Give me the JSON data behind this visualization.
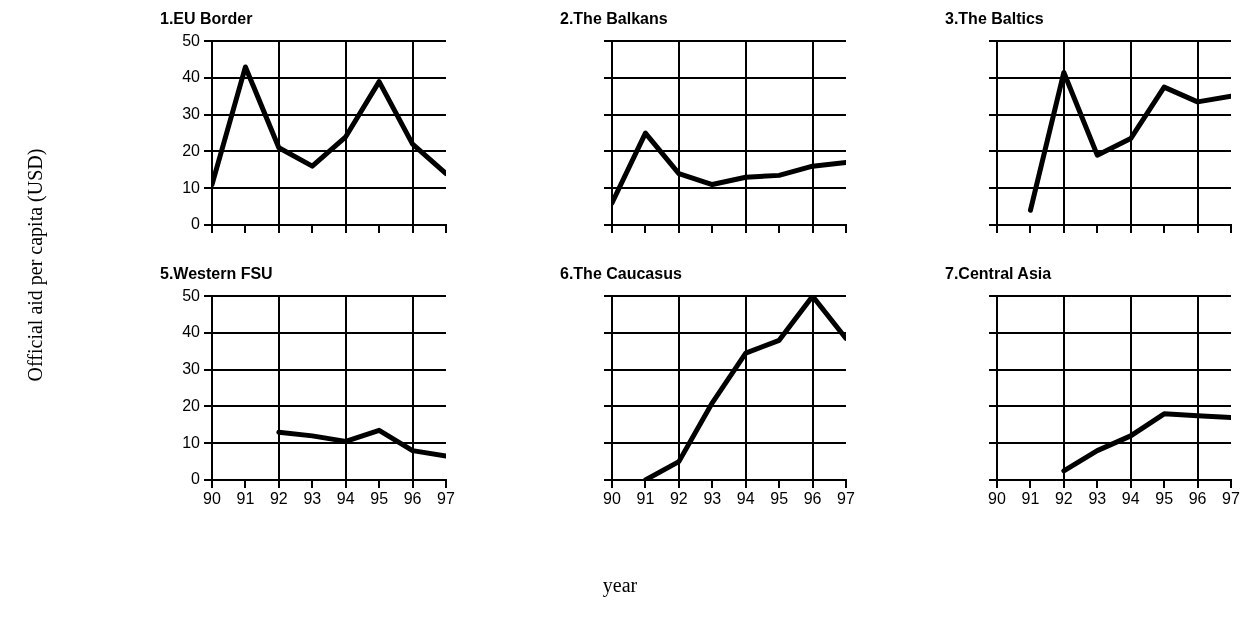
{
  "chart_data": [
    {
      "type": "line",
      "title": "1.EU Border",
      "ylabel": "Official aid per capita (USD)",
      "x": [
        90,
        91,
        92,
        93,
        94,
        95,
        96,
        97
      ],
      "xlim": [
        90,
        97
      ],
      "xticks": [
        90,
        91,
        92,
        93,
        94,
        95,
        96,
        97
      ],
      "ylim": [
        0,
        50
      ],
      "yticks": [
        0,
        10,
        20,
        30,
        40,
        50
      ],
      "grid": true,
      "tick_labels": "y",
      "marker": "none",
      "line_style": "solid",
      "series": [
        {
          "color": "#000000",
          "values": [
            11,
            43,
            21,
            16,
            24,
            39,
            22,
            14
          ]
        }
      ]
    },
    {
      "type": "line",
      "title": "2.The Balkans",
      "x": [
        90,
        91,
        92,
        93,
        94,
        95,
        96,
        97
      ],
      "xlim": [
        90,
        97
      ],
      "xticks": [
        90,
        91,
        92,
        93,
        94,
        95,
        96,
        97
      ],
      "ylim": [
        0,
        50
      ],
      "yticks": [
        0,
        10,
        20,
        30,
        40,
        50
      ],
      "grid": true,
      "tick_labels": false,
      "marker": "none",
      "line_style": "solid",
      "series": [
        {
          "color": "#000000",
          "values": [
            6,
            25,
            14,
            11,
            13,
            13.5,
            16,
            17
          ]
        }
      ]
    },
    {
      "type": "line",
      "title": "3.The Baltics",
      "xlim": [
        90,
        97
      ],
      "xticks": [
        90,
        91,
        92,
        93,
        94,
        95,
        96,
        97
      ],
      "ylim": [
        0,
        50
      ],
      "yticks": [
        0,
        10,
        20,
        30,
        40,
        50
      ],
      "grid": true,
      "tick_labels": false,
      "marker": "none",
      "line_style": "solid",
      "series": [
        {
          "color": "#000000",
          "x": [
            91,
            92,
            93,
            94,
            95,
            96,
            97
          ],
          "values": [
            4,
            41.5,
            19,
            23.5,
            37.5,
            33.5,
            35
          ]
        }
      ]
    },
    {
      "type": "line",
      "title": "5.Western FSU",
      "xlim": [
        90,
        97
      ],
      "xticks": [
        90,
        91,
        92,
        93,
        94,
        95,
        96,
        97
      ],
      "ylim": [
        0,
        50
      ],
      "yticks": [
        0,
        10,
        20,
        30,
        40,
        50
      ],
      "grid": true,
      "marker": "none",
      "line_style": "solid",
      "series": [
        {
          "color": "#000000",
          "x": [
            92,
            93,
            94,
            95,
            96,
            97
          ],
          "values": [
            13,
            12,
            10.5,
            13.5,
            8,
            6.5
          ]
        }
      ]
    },
    {
      "type": "line",
      "title": "6.The Caucasus",
      "xlabel": "year",
      "xlim": [
        90,
        97
      ],
      "xticks": [
        90,
        91,
        92,
        93,
        94,
        95,
        96,
        97
      ],
      "ylim": [
        0,
        50
      ],
      "yticks": [
        0,
        10,
        20,
        30,
        40,
        50
      ],
      "grid": true,
      "tick_labels": "x",
      "marker": "none",
      "line_style": "solid",
      "series": [
        {
          "color": "#000000",
          "x": [
            91,
            92,
            93,
            94,
            95,
            96,
            97
          ],
          "values": [
            0,
            5,
            21,
            34.5,
            38,
            50,
            38.5
          ]
        }
      ]
    },
    {
      "type": "line",
      "title": "7.Central Asia",
      "xlim": [
        90,
        97
      ],
      "xticks": [
        90,
        91,
        92,
        93,
        94,
        95,
        96,
        97
      ],
      "ylim": [
        0,
        50
      ],
      "yticks": [
        0,
        10,
        20,
        30,
        40,
        50
      ],
      "grid": true,
      "tick_labels": "x",
      "marker": "none",
      "line_style": "solid",
      "series": [
        {
          "color": "#000000",
          "x": [
            92,
            93,
            94,
            95,
            96,
            97
          ],
          "values": [
            2.5,
            8,
            12,
            18,
            17.5,
            17
          ]
        }
      ]
    }
  ]
}
